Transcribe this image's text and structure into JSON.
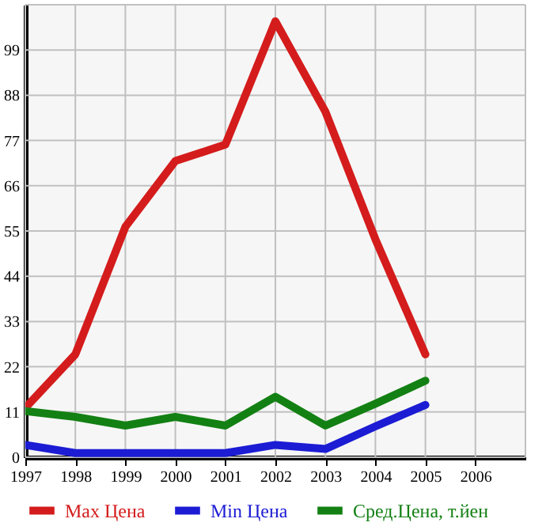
{
  "chart_data": {
    "type": "line",
    "x": [
      1997,
      1998,
      1999,
      2000,
      2001,
      2002,
      2003,
      2004,
      2005
    ],
    "series": [
      {
        "name": "Max Цена",
        "color": "#d41c1c",
        "values": [
          12,
          25,
          56,
          72,
          76,
          106,
          84,
          53,
          25
        ]
      },
      {
        "name": "Min Цена",
        "color": "#1c1cd4",
        "values": [
          3,
          1,
          1,
          1,
          1,
          3,
          2,
          7.5,
          12.7
        ]
      },
      {
        "name": "Сред.Цена, т.йен",
        "color": "#138013",
        "values": [
          11.2,
          9.8,
          7.7,
          9.8,
          7.7,
          14.7,
          7.7,
          13,
          18.6
        ]
      }
    ],
    "xlim": [
      1997,
      2007
    ],
    "xticks": [
      1997,
      1998,
      1999,
      2000,
      2001,
      2002,
      2003,
      2004,
      2005,
      2006
    ],
    "ylim": [
      0,
      110
    ],
    "yticks": [
      0,
      11,
      22,
      33,
      44,
      55,
      66,
      77,
      88,
      99
    ],
    "grid": true,
    "legend": "bottom",
    "marker": "none",
    "line_style": "solid"
  }
}
